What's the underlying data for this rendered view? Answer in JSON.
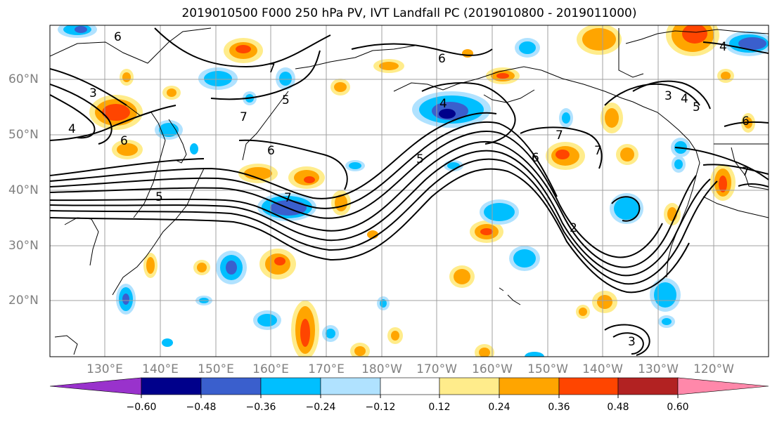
{
  "title": "2019010500 F000 250 hPa PV, IVT Landfall PC (2019010800 - 2019011000)",
  "lat_labels": [
    "60°N",
    "50°N",
    "40°N",
    "30°N",
    "20°N"
  ],
  "lon_labels": [
    "130°E",
    "140°E",
    "150°E",
    "160°E",
    "170°E",
    "180°W",
    "170°W",
    "160°W",
    "150°W",
    "140°W",
    "130°W",
    "120°W"
  ],
  "colorbar": {
    "ticks": [
      "−0.60",
      "−0.48",
      "−0.36",
      "−0.24",
      "−0.12",
      "0.12",
      "0.24",
      "0.36",
      "0.48",
      "0.60"
    ],
    "colors": [
      "#9932cc",
      "#00008b",
      "#3a5fcd",
      "#00bfff",
      "#b0e2ff",
      "#ffffff",
      "#ffec8b",
      "#ffa500",
      "#ff4500",
      "#b22222",
      "#ff88aa"
    ]
  },
  "contour_labels": [
    "6",
    "7",
    "5",
    "3",
    "4",
    "6",
    "7",
    "6",
    "7",
    "5",
    "4",
    "6",
    "7",
    "6",
    "7",
    "3",
    "4",
    "5",
    "6",
    "7",
    "5",
    "2",
    "3",
    "4"
  ]
}
